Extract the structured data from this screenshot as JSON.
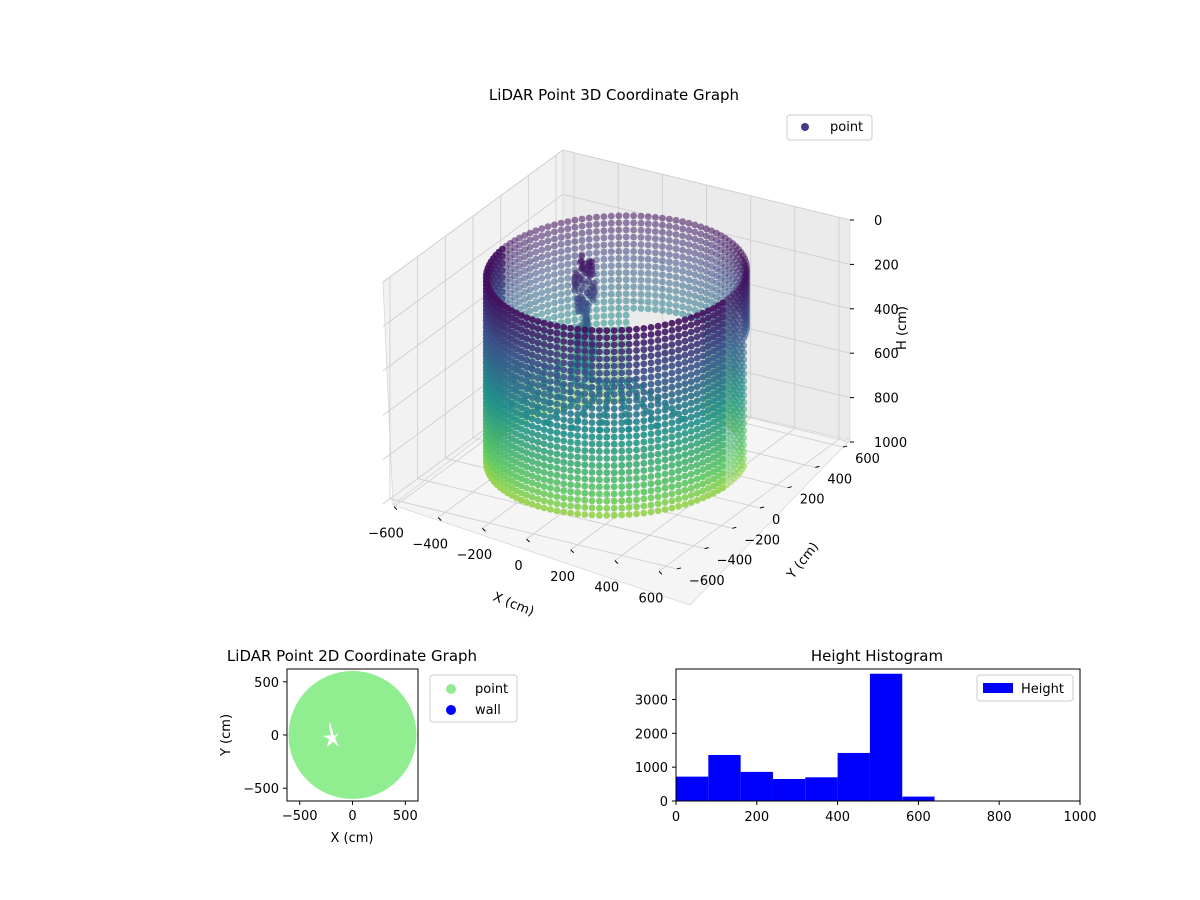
{
  "chart_data": [
    {
      "type": "scatter",
      "projection": "3d",
      "title": "LiDAR Point 3D Coordinate Graph",
      "xlabel": "X (cm)",
      "ylabel": "Y (cm)",
      "zlabel": "H (cm)",
      "xlim": [
        -650,
        650
      ],
      "ylim": [
        -650,
        650
      ],
      "zlim": [
        1000,
        0
      ],
      "x_ticks": [
        "−600",
        "−400",
        "−200",
        "0",
        "200",
        "400",
        "600"
      ],
      "y_ticks": [
        "−600",
        "−400",
        "−200",
        "0",
        "200",
        "400",
        "600"
      ],
      "z_ticks": [
        "0",
        "200",
        "400",
        "600",
        "800",
        "1000"
      ],
      "colormap": "viridis",
      "legend": {
        "entries": [
          "point"
        ],
        "color": "#443983",
        "position": "top-right"
      },
      "shape": {
        "wall_radius": 500,
        "wall_h_range": [
          100,
          950
        ],
        "column_angles_deg": [
          -150,
          40
        ]
      },
      "series": [
        {
          "name": "point"
        }
      ]
    },
    {
      "type": "scatter",
      "title": "LiDAR Point 2D Coordinate Graph",
      "xlabel": "X (cm)",
      "ylabel": "Y (cm)",
      "xlim": [
        -620,
        620
      ],
      "ylim": [
        -620,
        620
      ],
      "x_ticks": [
        "−500",
        "0",
        "500"
      ],
      "y_ticks": [
        "500",
        "0",
        "−500"
      ],
      "legend": {
        "entries": [
          "point",
          "wall"
        ],
        "colors": [
          "#90ee90",
          "#0000ff"
        ],
        "position": "outside-right"
      },
      "series": [
        {
          "name": "point",
          "color": "#90ee90",
          "disk_radius": 600,
          "hole_center": [
            -200,
            -50
          ]
        },
        {
          "name": "wall",
          "color": "#0000ff"
        }
      ]
    },
    {
      "type": "bar",
      "subtype": "histogram",
      "title": "Height Histogram",
      "xlim": [
        0,
        1000
      ],
      "ylim": [
        0,
        3900
      ],
      "x_ticks": [
        "0",
        "200",
        "400",
        "600",
        "800",
        "1000"
      ],
      "y_ticks": [
        "0",
        "1000",
        "2000",
        "3000"
      ],
      "legend": {
        "entries": [
          "Height"
        ],
        "position": "top-right"
      },
      "color": "#0000ff",
      "bin_edges": [
        0,
        80,
        160,
        240,
        320,
        400,
        480,
        560,
        640
      ],
      "values": [
        720,
        1360,
        860,
        650,
        700,
        1420,
        3760,
        130
      ],
      "series": [
        {
          "name": "Height"
        }
      ]
    }
  ]
}
